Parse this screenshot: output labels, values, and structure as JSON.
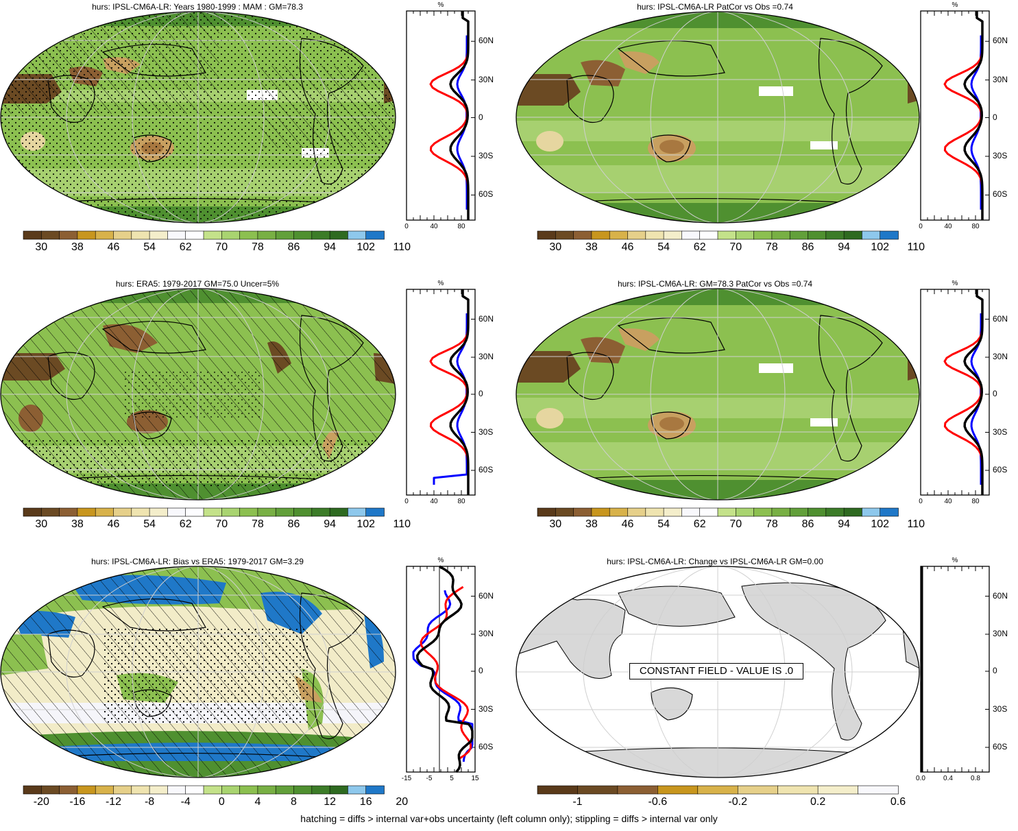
{
  "panels": [
    {
      "id": "p1",
      "title": "hurs: IPSL-CM6A-LR: Years 1980-1999 : MAM : GM=78.3"
    },
    {
      "id": "p2",
      "title": "hurs: IPSL-CM6A-LR PatCor vs Obs =0.74"
    },
    {
      "id": "p3",
      "title": "hurs: ERA5: 1979-2017 GM=75.0 Uncer=5%"
    },
    {
      "id": "p4",
      "title": "hurs: IPSL-CM6A-LR: GM=78.3 PatCor vs Obs =0.74"
    },
    {
      "id": "p5",
      "title": "hurs: IPSL-CM6A-LR: Bias vs ERA5: 1979-2017 GM=3.29"
    },
    {
      "id": "p6",
      "title": "hurs: IPSL-CM6A-LR: Change vs IPSL-CM6A-LR GM=0.00"
    }
  ],
  "colorbars": {
    "humidity_labels": [
      "30",
      "38",
      "46",
      "54",
      "62",
      "70",
      "78",
      "86",
      "94",
      "102",
      "110"
    ],
    "bias_labels": [
      "-20",
      "-16",
      "-12",
      "-8",
      "-4",
      "0",
      "4",
      "8",
      "12",
      "16",
      "20"
    ],
    "change_labels": [
      "-1",
      "-0.6",
      "-0.2",
      "0.2",
      "0.6"
    ]
  },
  "profile": {
    "unit": "%",
    "lat_labels": [
      "60N",
      "30N",
      "0",
      "30S",
      "60S"
    ],
    "x_humidity": [
      "0",
      "40",
      "80"
    ],
    "x_bias": [
      "-15",
      "-5",
      "5",
      "15"
    ],
    "x_change": [
      "0.0",
      "0.4",
      "0.8"
    ]
  },
  "constant_field": "CONSTANT FIELD - VALUE IS .0",
  "footnote": "hatching = diffs > internal var+obs uncertainty (left column only); stippling = diffs > internal var only",
  "colors": {
    "brown_dark": "#6b4a23",
    "brown": "#8c5f33",
    "tan": "#c8a060",
    "sand": "#e6d6a0",
    "pale": "#f2ecc8",
    "green_light": "#bfdc8a",
    "green": "#8cc050",
    "green_dark": "#4f9030",
    "blue": "#1f78c8",
    "blue_light": "#7ab8e8",
    "land_gray": "#d8d8d8",
    "red": "#ff0000",
    "black": "#000000",
    "prof_blue": "#0000ff"
  }
}
